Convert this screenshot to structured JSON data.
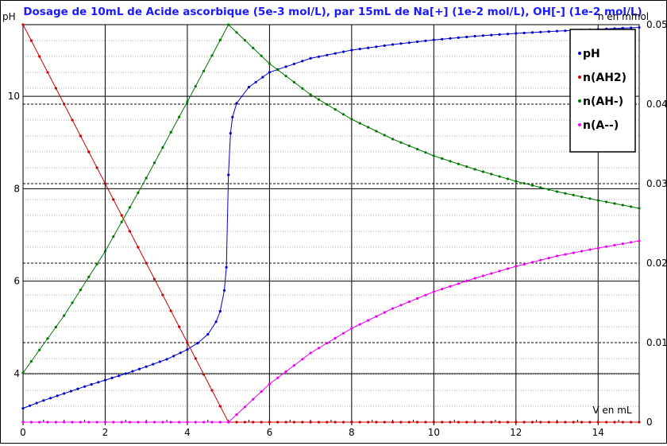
{
  "chart_data": {
    "type": "line",
    "title": "Dosage de 10mL de Acide ascorbique (5e-3 mol/L),  par 15mL  de Na[+] (1e-2 mol/L), OH[-] (1e-2 mol/L)",
    "xlabel": "V en mL",
    "ylabel_left": "pH",
    "ylabel_right": "n en mmol",
    "xlim": [
      0,
      15
    ],
    "ylim_left": [
      2.95,
      11.55
    ],
    "ylim_right": [
      0,
      0.05
    ],
    "x_ticks": [
      "0",
      "2",
      "4",
      "6",
      "8",
      "10",
      "12",
      "14"
    ],
    "y_ticks_left": [
      "4",
      "6",
      "8",
      "10"
    ],
    "y_ticks_right": [
      "0",
      "0.01",
      "0.02",
      "0.03",
      "0.04",
      "0.05"
    ],
    "grid": true,
    "legend_position": "top-right",
    "series": [
      {
        "name": "pH",
        "axis": "left",
        "color": "#0000cc",
        "points": [
          [
            0,
            3.25
          ],
          [
            0.5,
            3.42
          ],
          [
            1,
            3.57
          ],
          [
            1.5,
            3.72
          ],
          [
            2,
            3.86
          ],
          [
            2.5,
            4.0
          ],
          [
            3,
            4.15
          ],
          [
            3.5,
            4.31
          ],
          [
            4,
            4.52
          ],
          [
            4.25,
            4.66
          ],
          [
            4.5,
            4.85
          ],
          [
            4.7,
            5.12
          ],
          [
            4.8,
            5.35
          ],
          [
            4.9,
            5.8
          ],
          [
            4.95,
            6.3
          ],
          [
            5.0,
            8.3
          ],
          [
            5.05,
            9.2
          ],
          [
            5.1,
            9.55
          ],
          [
            5.2,
            9.85
          ],
          [
            5.5,
            10.2
          ],
          [
            6,
            10.52
          ],
          [
            7,
            10.82
          ],
          [
            8,
            11.0
          ],
          [
            9,
            11.12
          ],
          [
            10,
            11.22
          ],
          [
            11,
            11.3
          ],
          [
            12,
            11.36
          ],
          [
            13,
            11.41
          ],
          [
            14,
            11.45
          ],
          [
            15,
            11.49
          ]
        ]
      },
      {
        "name": "n(AH2)",
        "axis": "right",
        "color": "#cc0000",
        "points": [
          [
            0,
            0.05
          ],
          [
            5,
            0
          ],
          [
            15,
            0
          ]
        ]
      },
      {
        "name": "n(AH-)",
        "axis": "right",
        "color": "#007700",
        "points": [
          [
            0,
            0.0062
          ],
          [
            1,
            0.0134
          ],
          [
            2,
            0.0215
          ],
          [
            3,
            0.0307
          ],
          [
            4,
            0.0403
          ],
          [
            5,
            0.05
          ],
          [
            6,
            0.0451
          ],
          [
            7,
            0.0412
          ],
          [
            8,
            0.0381
          ],
          [
            9,
            0.0356
          ],
          [
            10,
            0.0335
          ],
          [
            11,
            0.0318
          ],
          [
            12,
            0.0303
          ],
          [
            13,
            0.029
          ],
          [
            14,
            0.0279
          ],
          [
            15,
            0.0269
          ]
        ]
      },
      {
        "name": "n(A--)",
        "axis": "right",
        "color": "#ee00ee",
        "points": [
          [
            0,
            0
          ],
          [
            5,
            0
          ],
          [
            6,
            0.0048
          ],
          [
            7,
            0.0087
          ],
          [
            8,
            0.0118
          ],
          [
            9,
            0.0143
          ],
          [
            10,
            0.0164
          ],
          [
            11,
            0.0181
          ],
          [
            12,
            0.0196
          ],
          [
            13,
            0.0209
          ],
          [
            14,
            0.0219
          ],
          [
            15,
            0.0228
          ]
        ]
      }
    ]
  }
}
